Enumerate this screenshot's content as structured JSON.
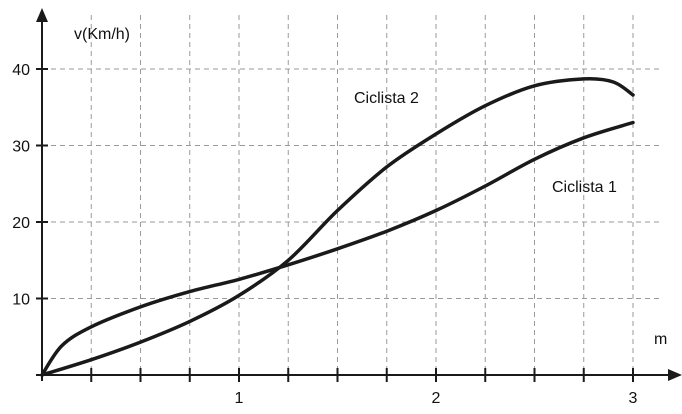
{
  "chart_data": {
    "type": "line",
    "xlabel": "m",
    "ylabel": "v(Km/h)",
    "xlim": [
      0,
      3.2
    ],
    "ylim": [
      0,
      46
    ],
    "x_ticks": [
      1,
      2,
      3
    ],
    "y_ticks": [
      10,
      20,
      30,
      40
    ],
    "grid": true,
    "line_color": "#1a1a1a",
    "grid_color": "#9a9a9a",
    "series": [
      {
        "name": "Ciclista 1",
        "x": [
          0,
          0.1,
          0.25,
          0.5,
          0.75,
          1.0,
          1.25,
          1.5,
          1.75,
          2.0,
          2.25,
          2.5,
          2.75,
          3.0
        ],
        "y": [
          0,
          3.8,
          6.3,
          8.9,
          10.9,
          12.5,
          14.4,
          16.5,
          18.8,
          21.5,
          24.7,
          28.2,
          31.0,
          33.0
        ]
      },
      {
        "name": "Ciclista 2",
        "x": [
          0,
          0.25,
          0.5,
          0.75,
          1.0,
          1.25,
          1.5,
          1.75,
          2.0,
          2.25,
          2.5,
          2.75,
          2.9,
          3.0
        ],
        "y": [
          0,
          2.0,
          4.3,
          7.0,
          10.4,
          15.0,
          21.5,
          27.2,
          31.5,
          35.2,
          37.8,
          38.7,
          38.3,
          36.6
        ]
      }
    ]
  }
}
